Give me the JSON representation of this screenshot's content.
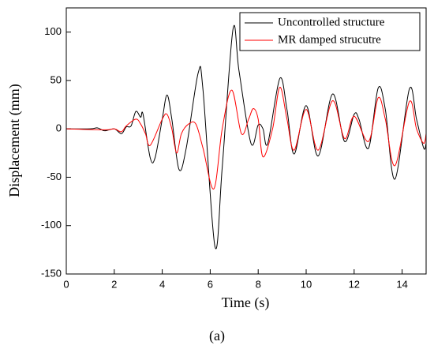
{
  "chart_data": {
    "type": "line",
    "xlabel": "Time (s)",
    "ylabel": "Displacement (mm)",
    "caption": "(a)",
    "xlim": [
      0,
      15
    ],
    "xticks": [
      0,
      2,
      4,
      6,
      8,
      10,
      12,
      14
    ],
    "ylim": [
      -150,
      125
    ],
    "yticks": [
      -150,
      -100,
      -50,
      0,
      50,
      100
    ],
    "legend": "upper right",
    "series": [
      {
        "name": "Uncontrolled structure",
        "color": "#000000",
        "x": [
          0,
          1,
          1.3,
          1.6,
          2,
          2.3,
          2.5,
          2.7,
          2.9,
          3.1,
          3.2,
          3.5,
          3.7,
          4.0,
          4.2,
          4.4,
          4.7,
          5.0,
          5.5,
          5.7,
          6.2,
          6.5,
          6.95,
          7.2,
          7.7,
          8.0,
          8.2,
          8.4,
          8.9,
          9.2,
          9.5,
          10.0,
          10.5,
          11.1,
          11.6,
          12.0,
          12.2,
          12.6,
          13.0,
          13.3,
          13.7,
          14.3,
          14.6,
          14.9,
          15
        ],
        "values": [
          0,
          0,
          1,
          -2,
          0,
          -5,
          2,
          3,
          18,
          12,
          15,
          -30,
          -30,
          10,
          35,
          10,
          -42,
          -20,
          58,
          40,
          -122,
          -40,
          103,
          60,
          -15,
          4,
          0,
          -15,
          52,
          20,
          -26,
          24,
          -28,
          36,
          -13,
          15,
          10,
          -20,
          42,
          20,
          -52,
          41,
          10,
          -20,
          -15
        ]
      },
      {
        "name": "MR damped strucutre",
        "color": "#ff0000",
        "x": [
          0,
          1.6,
          2.0,
          2.3,
          2.5,
          2.9,
          3.1,
          3.3,
          3.5,
          4.0,
          4.2,
          4.4,
          4.6,
          4.8,
          5.1,
          5.4,
          5.7,
          6.15,
          6.5,
          6.9,
          7.3,
          7.6,
          7.8,
          8.0,
          8.2,
          8.6,
          8.9,
          9.2,
          9.5,
          10.0,
          10.5,
          11.1,
          11.6,
          12.0,
          12.6,
          13.0,
          13.3,
          13.7,
          14.3,
          14.6,
          14.9,
          15
        ],
        "values": [
          0,
          -1,
          0,
          -3,
          3,
          10,
          5,
          -5,
          -17,
          10,
          15,
          0,
          -25,
          -5,
          5,
          5,
          -20,
          -62,
          0,
          40,
          -5,
          10,
          21,
          10,
          -29,
          0,
          43,
          10,
          -22,
          20,
          -22,
          29,
          -10,
          13,
          -13,
          32,
          10,
          -38,
          28,
          0,
          -15,
          -5
        ]
      }
    ]
  }
}
